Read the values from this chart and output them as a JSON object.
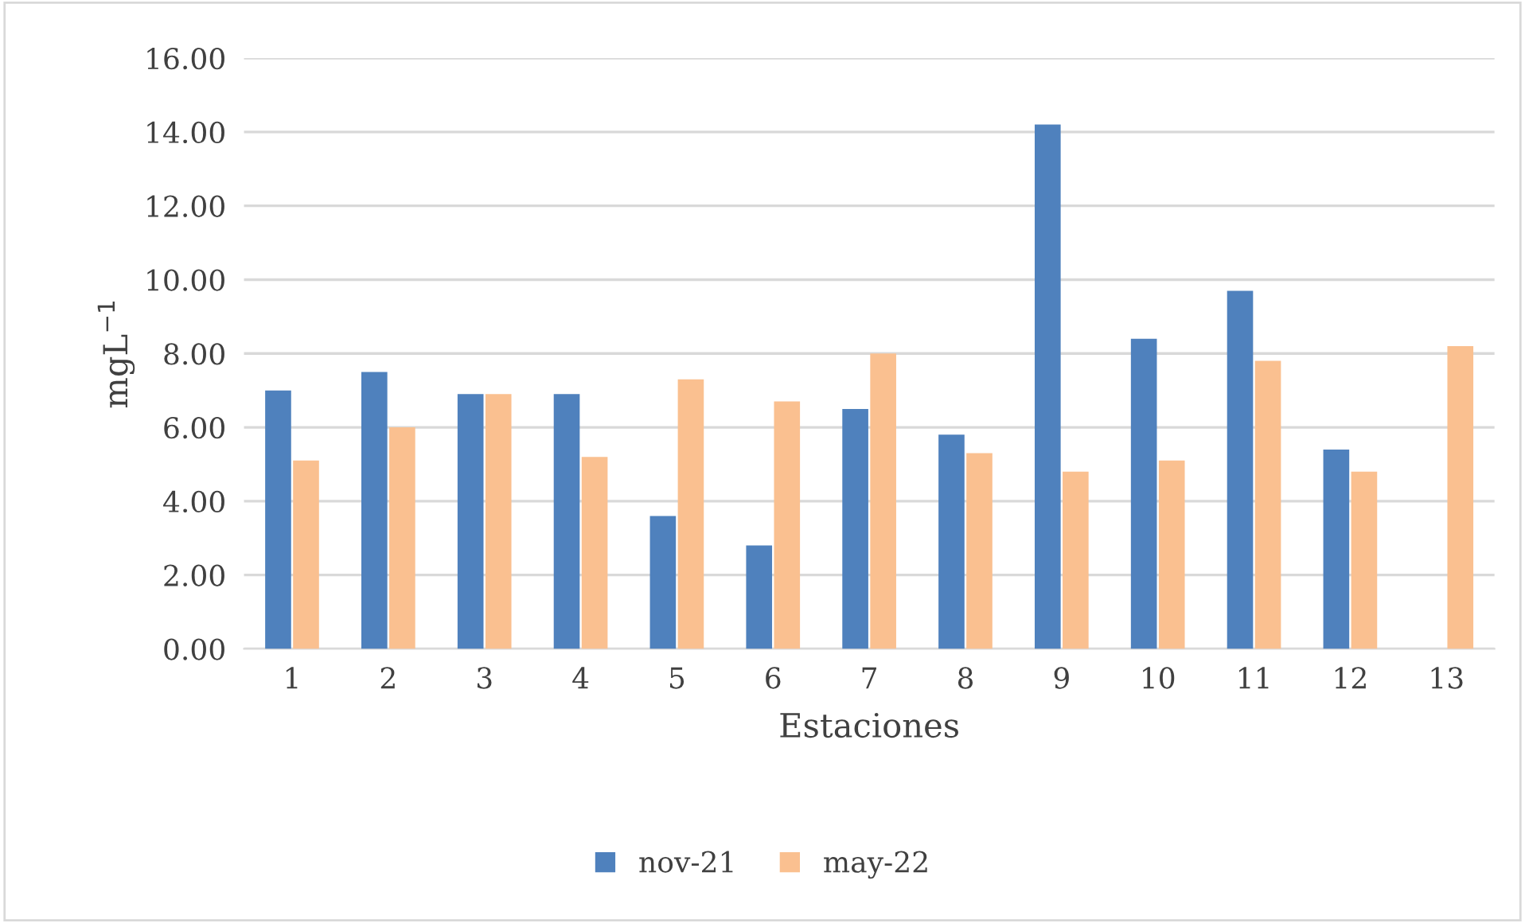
{
  "chart_data": {
    "type": "bar",
    "xlabel": "Estaciones",
    "ylabel": "mgL$^{−1}$",
    "categories": [
      "1",
      "2",
      "3",
      "4",
      "5",
      "6",
      "7",
      "8",
      "9",
      "10",
      "11",
      "12",
      "13"
    ],
    "series": [
      {
        "name": "nov-21",
        "color": "#4f81bd",
        "values": [
          7.0,
          7.5,
          6.9,
          6.9,
          3.6,
          2.8,
          6.5,
          5.8,
          14.2,
          8.4,
          9.7,
          5.4,
          null
        ]
      },
      {
        "name": "may-22",
        "color": "#fac090",
        "values": [
          5.1,
          6.0,
          6.9,
          5.2,
          7.3,
          6.7,
          8.0,
          5.3,
          4.8,
          5.1,
          7.8,
          4.8,
          8.2
        ]
      }
    ],
    "ylim": [
      0,
      16
    ],
    "yticks": [
      {
        "value": 0,
        "label": "0.00"
      },
      {
        "value": 2,
        "label": "2.00"
      },
      {
        "value": 4,
        "label": "4.00"
      },
      {
        "value": 6,
        "label": "6.00"
      },
      {
        "value": 8,
        "label": "8.00"
      },
      {
        "value": 10,
        "label": "10.00"
      },
      {
        "value": 12,
        "label": "12.00"
      },
      {
        "value": 14,
        "label": "14.00"
      },
      {
        "value": 16,
        "label": "16.00"
      }
    ],
    "grid": "y",
    "legend": "bottom"
  }
}
